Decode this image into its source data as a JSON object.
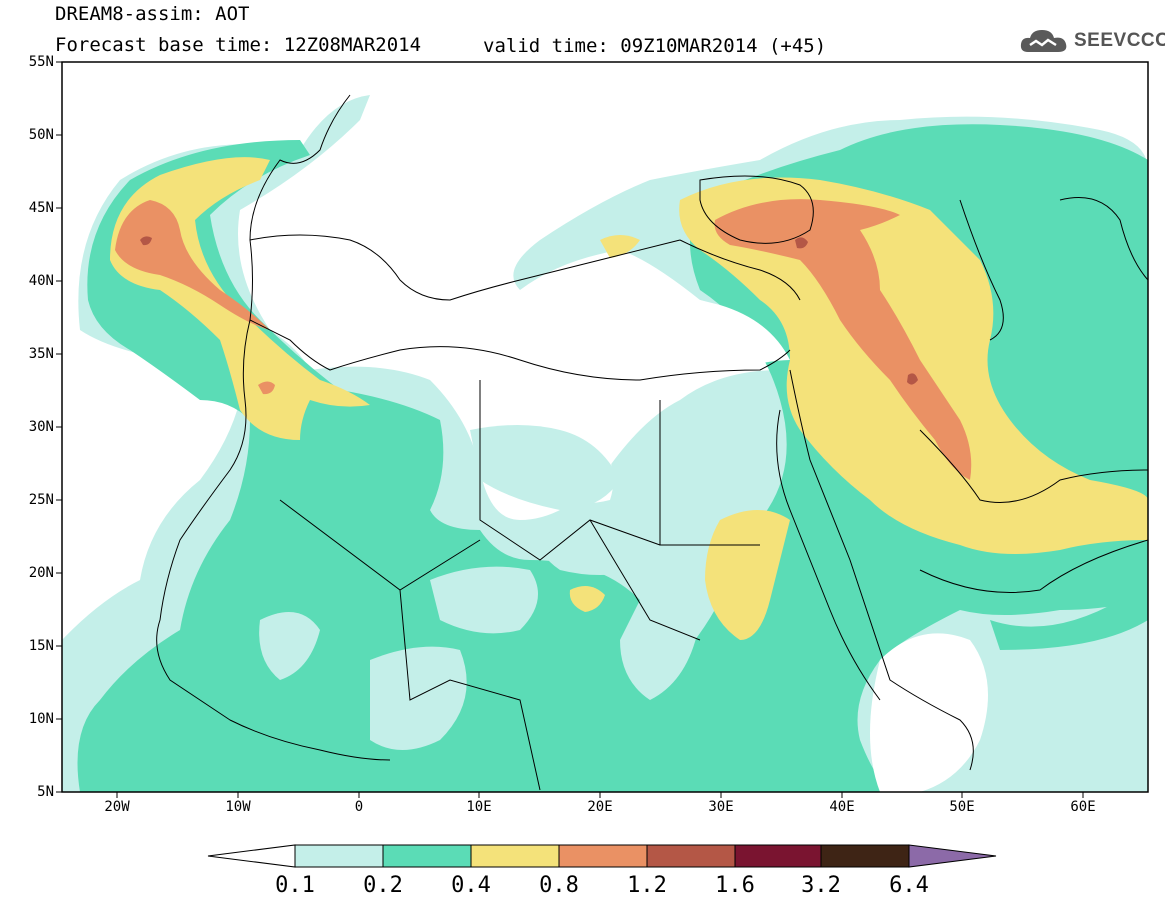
{
  "header": {
    "title": "DREAM8-assim: AOT",
    "forecast_base": "Forecast base time: 12Z08MAR2014",
    "valid_time": "valid time: 09Z10MAR2014 (+45)"
  },
  "logo": {
    "text": "SEEVCCC",
    "icon": "cloud-icon"
  },
  "map": {
    "variable": "AOT",
    "lat_labels": [
      "55N",
      "50N",
      "45N",
      "40N",
      "35N",
      "30N",
      "25N",
      "20N",
      "15N",
      "10N",
      "5N"
    ],
    "lon_labels": [
      "20W",
      "10W",
      "0",
      "10E",
      "20E",
      "30E",
      "40E",
      "50E",
      "60E"
    ],
    "extent": {
      "lon_min": -25,
      "lon_max": 65,
      "lat_min": 5,
      "lat_max": 55
    }
  },
  "colorbar": {
    "levels": [
      "0.1",
      "0.2",
      "0.4",
      "0.8",
      "1.2",
      "1.6",
      "3.2",
      "6.4"
    ],
    "colors": [
      "#ffffff",
      "#c4efe9",
      "#5bdcb6",
      "#f4e27a",
      "#ea9164",
      "#b45746",
      "#7a1430",
      "#3e2415",
      "#8c6aa8"
    ]
  },
  "palette": {
    "c01": "#c4efe9",
    "c02": "#5bdcb6",
    "c04": "#f4e27a",
    "c08": "#ea9164",
    "c12": "#b45746"
  }
}
